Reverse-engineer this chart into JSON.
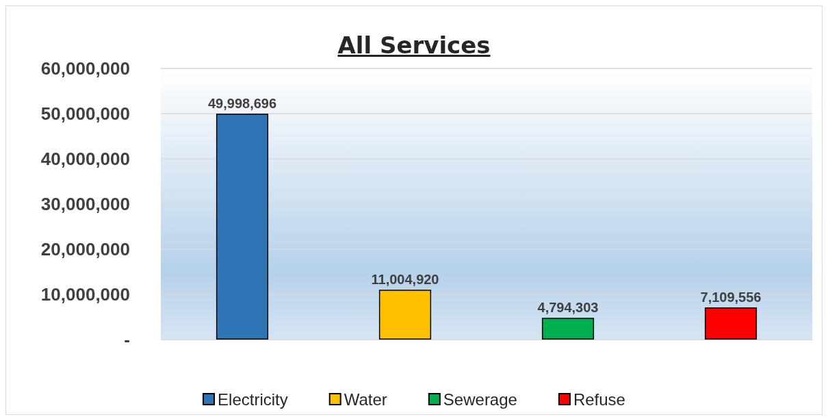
{
  "chart_data": {
    "type": "bar",
    "title": "All Services",
    "categories": [
      null,
      null,
      null,
      null
    ],
    "series": [
      {
        "name": "Electricity",
        "color": "#2e75b6",
        "values": [
          49998696,
          null,
          null,
          null
        ],
        "value_labels": [
          "49,998,696",
          null,
          null,
          null
        ]
      },
      {
        "name": "Water",
        "color": "#ffc000",
        "values": [
          null,
          11004920,
          null,
          null
        ],
        "value_labels": [
          null,
          "11,004,920",
          null,
          null
        ]
      },
      {
        "name": "Sewerage",
        "color": "#00b050",
        "values": [
          null,
          null,
          4794303,
          null
        ],
        "value_labels": [
          null,
          null,
          "4,794,303",
          null
        ]
      },
      {
        "name": "Refuse",
        "color": "#ff0000",
        "values": [
          null,
          null,
          null,
          7109556
        ],
        "value_labels": [
          null,
          null,
          null,
          "7,109,556"
        ]
      }
    ],
    "ylim": [
      0,
      60000000
    ],
    "yticks": [
      {
        "value": 0,
        "label": "-"
      },
      {
        "value": 10000000,
        "label": "10,000,000"
      },
      {
        "value": 20000000,
        "label": "20,000,000"
      },
      {
        "value": 30000000,
        "label": "30,000,000"
      },
      {
        "value": 40000000,
        "label": "40,000,000"
      },
      {
        "value": 50000000,
        "label": "50,000,000"
      },
      {
        "value": 60000000,
        "label": "60,000,000"
      }
    ],
    "grid": "y",
    "legend": "bottom",
    "tick_labels": "y"
  }
}
